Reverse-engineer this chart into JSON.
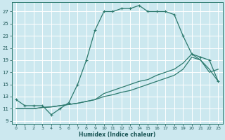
{
  "xlabel": "Humidex (Indice chaleur)",
  "bg_color": "#cce8ef",
  "grid_color": "#ffffff",
  "line_color": "#2d7a6e",
  "xlim": [
    -0.5,
    23.5
  ],
  "ylim": [
    8.5,
    28.5
  ],
  "xticks": [
    0,
    1,
    2,
    3,
    4,
    5,
    6,
    7,
    8,
    9,
    10,
    11,
    12,
    13,
    14,
    15,
    16,
    17,
    18,
    19,
    20,
    21,
    22,
    23
  ],
  "yticks": [
    9,
    11,
    13,
    15,
    17,
    19,
    21,
    23,
    25,
    27
  ],
  "line1_x": [
    0,
    1,
    2,
    3,
    4,
    5,
    6,
    7,
    8,
    9,
    10,
    11,
    12,
    13,
    14,
    15,
    16,
    17,
    18,
    19,
    20,
    21,
    22,
    23
  ],
  "line1_y": [
    12.5,
    11.5,
    11.5,
    11.5,
    10.0,
    11.0,
    12.0,
    15.0,
    19.0,
    24.0,
    27.0,
    27.0,
    27.5,
    27.5,
    28.0,
    27.0,
    27.0,
    27.0,
    26.5,
    23.0,
    20.0,
    19.5,
    19.0,
    15.5
  ],
  "line2_x": [
    0,
    1,
    2,
    3,
    4,
    5,
    6,
    7,
    8,
    9,
    10,
    11,
    12,
    13,
    14,
    15,
    16,
    17,
    18,
    19,
    20,
    21,
    22,
    23
  ],
  "line2_y": [
    11.0,
    11.0,
    11.0,
    11.2,
    11.3,
    11.5,
    11.7,
    11.9,
    12.2,
    12.5,
    13.5,
    14.0,
    14.5,
    15.0,
    15.5,
    15.8,
    16.5,
    17.0,
    17.5,
    18.5,
    20.0,
    19.0,
    17.5,
    15.5
  ],
  "line3_x": [
    0,
    1,
    2,
    3,
    4,
    5,
    6,
    7,
    8,
    9,
    10,
    11,
    12,
    13,
    14,
    15,
    16,
    17,
    18,
    19,
    20,
    21,
    22,
    23
  ],
  "line3_y": [
    11.0,
    11.0,
    11.0,
    11.2,
    11.3,
    11.5,
    11.7,
    11.9,
    12.2,
    12.5,
    13.0,
    13.3,
    13.7,
    14.0,
    14.5,
    15.0,
    15.5,
    16.0,
    16.5,
    17.5,
    19.5,
    19.0,
    17.0,
    17.5
  ]
}
